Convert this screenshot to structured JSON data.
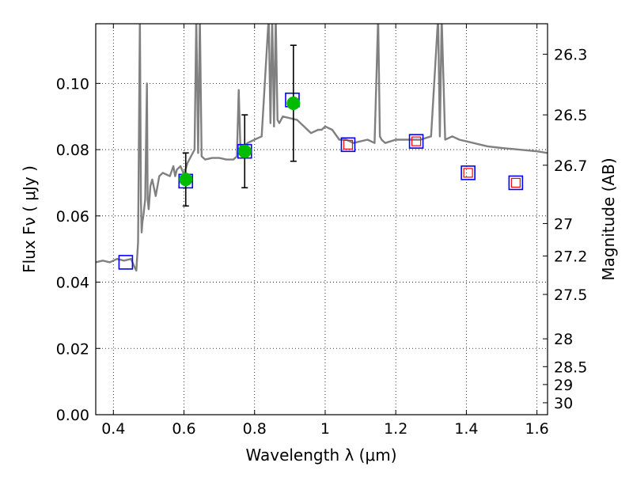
{
  "chart_data": {
    "type": "scatter",
    "title": "",
    "xlabel": "Wavelength  λ (μm)",
    "ylabel": "Flux  Fν  ( μJy )",
    "ylabel_right": "Magnitude (AB)",
    "xlim": [
      0.35,
      1.63
    ],
    "ylim": [
      0.0,
      0.118
    ],
    "grid": true,
    "x_ticks": [
      0.4,
      0.6,
      0.8,
      1.0,
      1.2,
      1.4,
      1.6
    ],
    "x_tick_labels": [
      "0.4",
      "0.6",
      "0.8",
      "1",
      "1.2",
      "1.4",
      "1.6"
    ],
    "y_ticks": [
      0.0,
      0.02,
      0.04,
      0.06,
      0.08,
      0.1
    ],
    "y_tick_labels": [
      "0.00",
      "0.02",
      "0.04",
      "0.06",
      "0.08",
      "0.10"
    ],
    "right_ticks": [
      {
        "label": "26.3",
        "flux": 0.1088
      },
      {
        "label": "26.5",
        "flux": 0.0905
      },
      {
        "label": "26.7",
        "flux": 0.0753
      },
      {
        "label": "27",
        "flux": 0.0577
      },
      {
        "label": "27.2",
        "flux": 0.0479
      },
      {
        "label": "27.5",
        "flux": 0.0363
      },
      {
        "label": "28",
        "flux": 0.0229
      },
      {
        "label": "28.5",
        "flux": 0.0145
      },
      {
        "label": "29",
        "flux": 0.0091
      },
      {
        "label": "30",
        "flux": 0.0036
      }
    ],
    "series": [
      {
        "role": "model-spectrum",
        "style": "line",
        "color": "#808080",
        "x": [
          0.35,
          0.37,
          0.39,
          0.41,
          0.43,
          0.45,
          0.46,
          0.465,
          0.47,
          0.475,
          0.478,
          0.48,
          0.482,
          0.485,
          0.49,
          0.495,
          0.497,
          0.5,
          0.505,
          0.51,
          0.52,
          0.53,
          0.54,
          0.55,
          0.56,
          0.57,
          0.575,
          0.58,
          0.59,
          0.6,
          0.61,
          0.62,
          0.63,
          0.635,
          0.64,
          0.645,
          0.65,
          0.66,
          0.68,
          0.7,
          0.72,
          0.74,
          0.75,
          0.755,
          0.76,
          0.77,
          0.78,
          0.8,
          0.82,
          0.84,
          0.845,
          0.85,
          0.855,
          0.86,
          0.865,
          0.87,
          0.88,
          0.9,
          0.92,
          0.94,
          0.96,
          0.98,
          0.99,
          1.0,
          1.02,
          1.04,
          1.06,
          1.08,
          1.1,
          1.12,
          1.14,
          1.15,
          1.155,
          1.16,
          1.17,
          1.2,
          1.24,
          1.27,
          1.3,
          1.32,
          1.325,
          1.33,
          1.34,
          1.36,
          1.38,
          1.4,
          1.42,
          1.44,
          1.46,
          1.5,
          1.55,
          1.6,
          1.63
        ],
        "y": [
          0.046,
          0.0465,
          0.046,
          0.047,
          0.0465,
          0.047,
          0.0445,
          0.0435,
          0.052,
          0.12,
          0.065,
          0.055,
          0.058,
          0.06,
          0.065,
          0.1,
          0.065,
          0.062,
          0.069,
          0.071,
          0.066,
          0.072,
          0.073,
          0.0725,
          0.072,
          0.075,
          0.072,
          0.074,
          0.075,
          0.0725,
          0.076,
          0.078,
          0.08,
          0.12,
          0.079,
          0.12,
          0.078,
          0.077,
          0.0775,
          0.0775,
          0.077,
          0.077,
          0.078,
          0.098,
          0.08,
          0.081,
          0.082,
          0.083,
          0.084,
          0.12,
          0.088,
          0.12,
          0.087,
          0.12,
          0.089,
          0.088,
          0.09,
          0.0895,
          0.089,
          0.087,
          0.085,
          0.086,
          0.086,
          0.087,
          0.086,
          0.083,
          0.083,
          0.082,
          0.0825,
          0.083,
          0.082,
          0.12,
          0.084,
          0.083,
          0.082,
          0.083,
          0.083,
          0.083,
          0.084,
          0.12,
          0.084,
          0.12,
          0.083,
          0.084,
          0.083,
          0.0825,
          0.082,
          0.0815,
          0.081,
          0.0805,
          0.08,
          0.0795,
          0.079
        ]
      },
      {
        "role": "model-photometry",
        "style": "open-square",
        "color": "#0000ff",
        "x": [
          0.435,
          0.605,
          0.772,
          0.907,
          1.065,
          1.258,
          1.405,
          1.54
        ],
        "y": [
          0.046,
          0.0705,
          0.0795,
          0.095,
          0.0815,
          0.0825,
          0.073,
          0.07
        ]
      },
      {
        "role": "observed-photometry",
        "style": "filled-circle",
        "color": "#00bb00",
        "x": [
          0.605,
          0.772,
          0.91
        ],
        "y": [
          0.071,
          0.0795,
          0.094
        ],
        "yerr": [
          0.008,
          0.011,
          0.0175
        ]
      },
      {
        "role": "upper-limit-markers",
        "style": "small-open-square",
        "color": "#ff0000",
        "x": [
          1.065,
          1.258,
          1.405,
          1.54
        ],
        "y": [
          0.0815,
          0.0825,
          0.073,
          0.07
        ]
      }
    ]
  }
}
